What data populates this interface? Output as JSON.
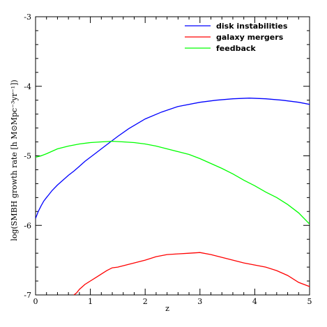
{
  "chart_data": {
    "type": "line",
    "title": "",
    "xlabel": "z",
    "ylabel": "log(SMBH growth rate [h M⊙Mpc⁻³yr⁻¹])",
    "xlim": [
      0,
      5
    ],
    "ylim": [
      -7,
      -3
    ],
    "x_ticks": [
      "0",
      "1",
      "2",
      "3",
      "4",
      "5"
    ],
    "y_ticks": [
      "-7",
      "-6",
      "-5",
      "-4",
      "-3"
    ],
    "legend_position": "top-right",
    "grid": false,
    "series": [
      {
        "name": "disk instabilities",
        "color": "#0000ff",
        "x": [
          0.0,
          0.05,
          0.1,
          0.15,
          0.2,
          0.25,
          0.3,
          0.4,
          0.5,
          0.6,
          0.7,
          0.8,
          0.9,
          1.0,
          1.1,
          1.2,
          1.3,
          1.5,
          1.7,
          2.0,
          2.3,
          2.6,
          3.0,
          3.3,
          3.6,
          3.9,
          4.2,
          4.5,
          4.8,
          5.0
        ],
        "y": [
          -5.9,
          -5.8,
          -5.72,
          -5.65,
          -5.6,
          -5.55,
          -5.5,
          -5.42,
          -5.35,
          -5.28,
          -5.22,
          -5.15,
          -5.08,
          -5.02,
          -4.96,
          -4.9,
          -4.84,
          -4.72,
          -4.61,
          -4.47,
          -4.37,
          -4.29,
          -4.23,
          -4.2,
          -4.18,
          -4.17,
          -4.18,
          -4.2,
          -4.23,
          -4.26
        ]
      },
      {
        "name": "galaxy mergers",
        "color": "#ff0000",
        "x": [
          0.7,
          0.75,
          0.8,
          0.9,
          1.0,
          1.1,
          1.2,
          1.3,
          1.4,
          1.5,
          1.6,
          1.7,
          1.8,
          1.9,
          2.0,
          2.2,
          2.4,
          2.6,
          2.8,
          3.0,
          3.2,
          3.4,
          3.6,
          3.8,
          4.0,
          4.2,
          4.4,
          4.6,
          4.8,
          5.0
        ],
        "y": [
          -7.0,
          -6.97,
          -6.92,
          -6.85,
          -6.8,
          -6.75,
          -6.7,
          -6.65,
          -6.61,
          -6.6,
          -6.58,
          -6.56,
          -6.54,
          -6.52,
          -6.5,
          -6.45,
          -6.42,
          -6.41,
          -6.4,
          -6.39,
          -6.42,
          -6.46,
          -6.5,
          -6.54,
          -6.57,
          -6.6,
          -6.65,
          -6.72,
          -6.82,
          -6.88
        ]
      },
      {
        "name": "feedback",
        "color": "#00ff00",
        "x": [
          0.0,
          0.1,
          0.2,
          0.4,
          0.6,
          0.8,
          1.0,
          1.2,
          1.4,
          1.6,
          1.8,
          2.0,
          2.2,
          2.4,
          2.6,
          2.8,
          3.0,
          3.2,
          3.4,
          3.6,
          3.8,
          4.0,
          4.2,
          4.4,
          4.6,
          4.8,
          5.0
        ],
        "y": [
          -5.02,
          -5.0,
          -4.97,
          -4.9,
          -4.86,
          -4.83,
          -4.81,
          -4.8,
          -4.79,
          -4.8,
          -4.81,
          -4.83,
          -4.86,
          -4.9,
          -4.94,
          -4.98,
          -5.04,
          -5.11,
          -5.18,
          -5.26,
          -5.35,
          -5.43,
          -5.52,
          -5.6,
          -5.7,
          -5.82,
          -5.98
        ]
      }
    ]
  }
}
